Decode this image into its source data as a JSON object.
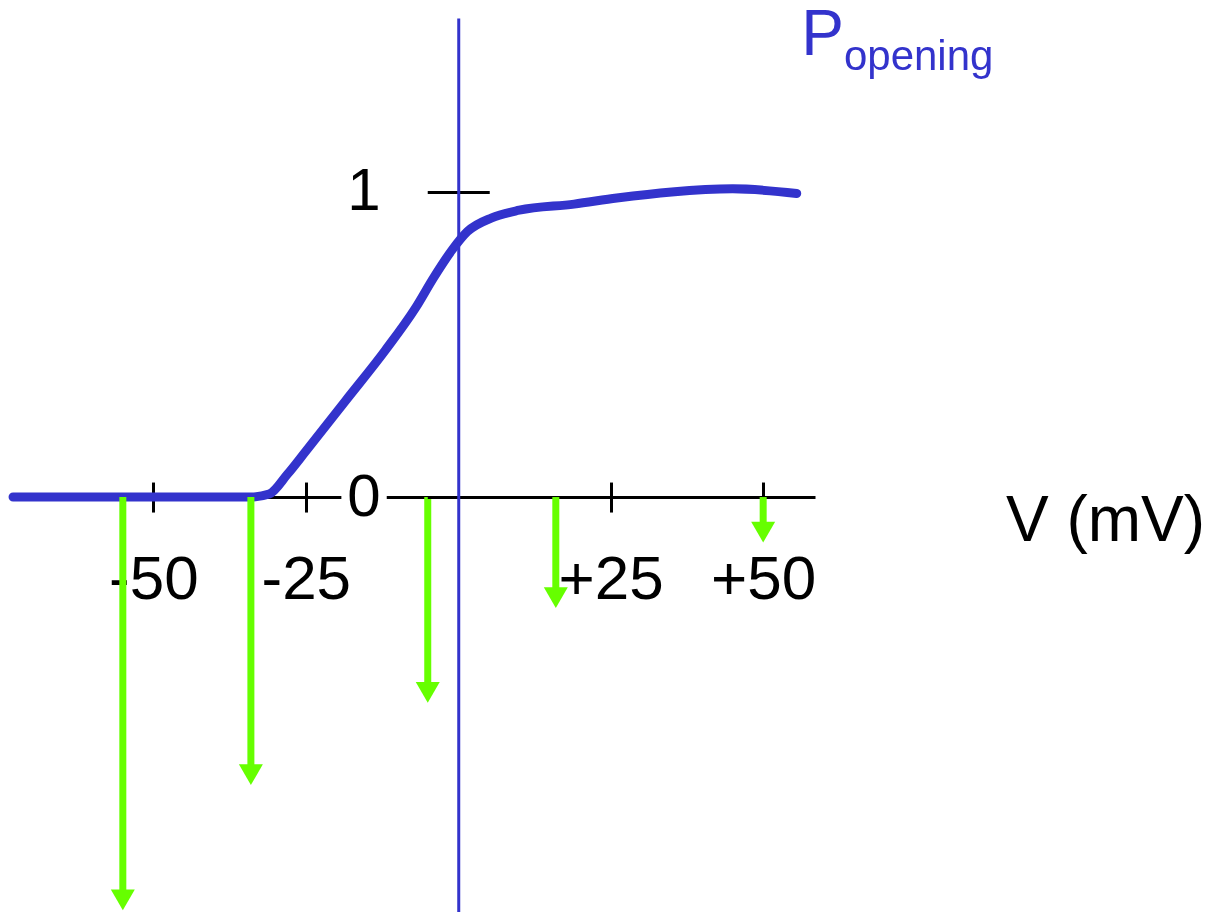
{
  "chart_data": {
    "type": "line",
    "xlabel": "V (mV)",
    "ylabel": "P$_{opening}$",
    "xlim": [
      -73.5,
      58.5
    ],
    "ylim": [
      -1.36,
      1.57
    ],
    "xticks": [
      -50,
      -25,
      {
        "value": 25,
        "label": "+25"
      },
      {
        "value": 50,
        "label": "+50"
      }
    ],
    "yticks": [
      0,
      1
    ],
    "series": [
      {
        "type": "line",
        "color": "#3333cc",
        "x": [
          -73,
          -50,
          -40,
          -34,
          -31,
          -28,
          -25,
          -18.5,
          -12,
          -7,
          -4,
          -1,
          1.5,
          5.5,
          10,
          19,
          26,
          35,
          45,
          55.5
        ],
        "values": [
          0,
          0,
          0,
          0,
          0.01,
          0.075,
          0.15,
          0.315,
          0.48,
          0.62,
          0.72,
          0.81,
          0.87,
          0.915,
          0.94,
          0.96,
          0.98,
          1.0,
          1.01,
          0.995
        ]
      },
      {
        "type": "lollipop",
        "color": "#66ff00",
        "marker": "triangle",
        "x": [
          -55,
          -34,
          -5,
          16,
          50
        ],
        "values": [
          -1.32,
          -0.91,
          -0.64,
          -0.33,
          -0.115
        ]
      }
    ]
  }
}
